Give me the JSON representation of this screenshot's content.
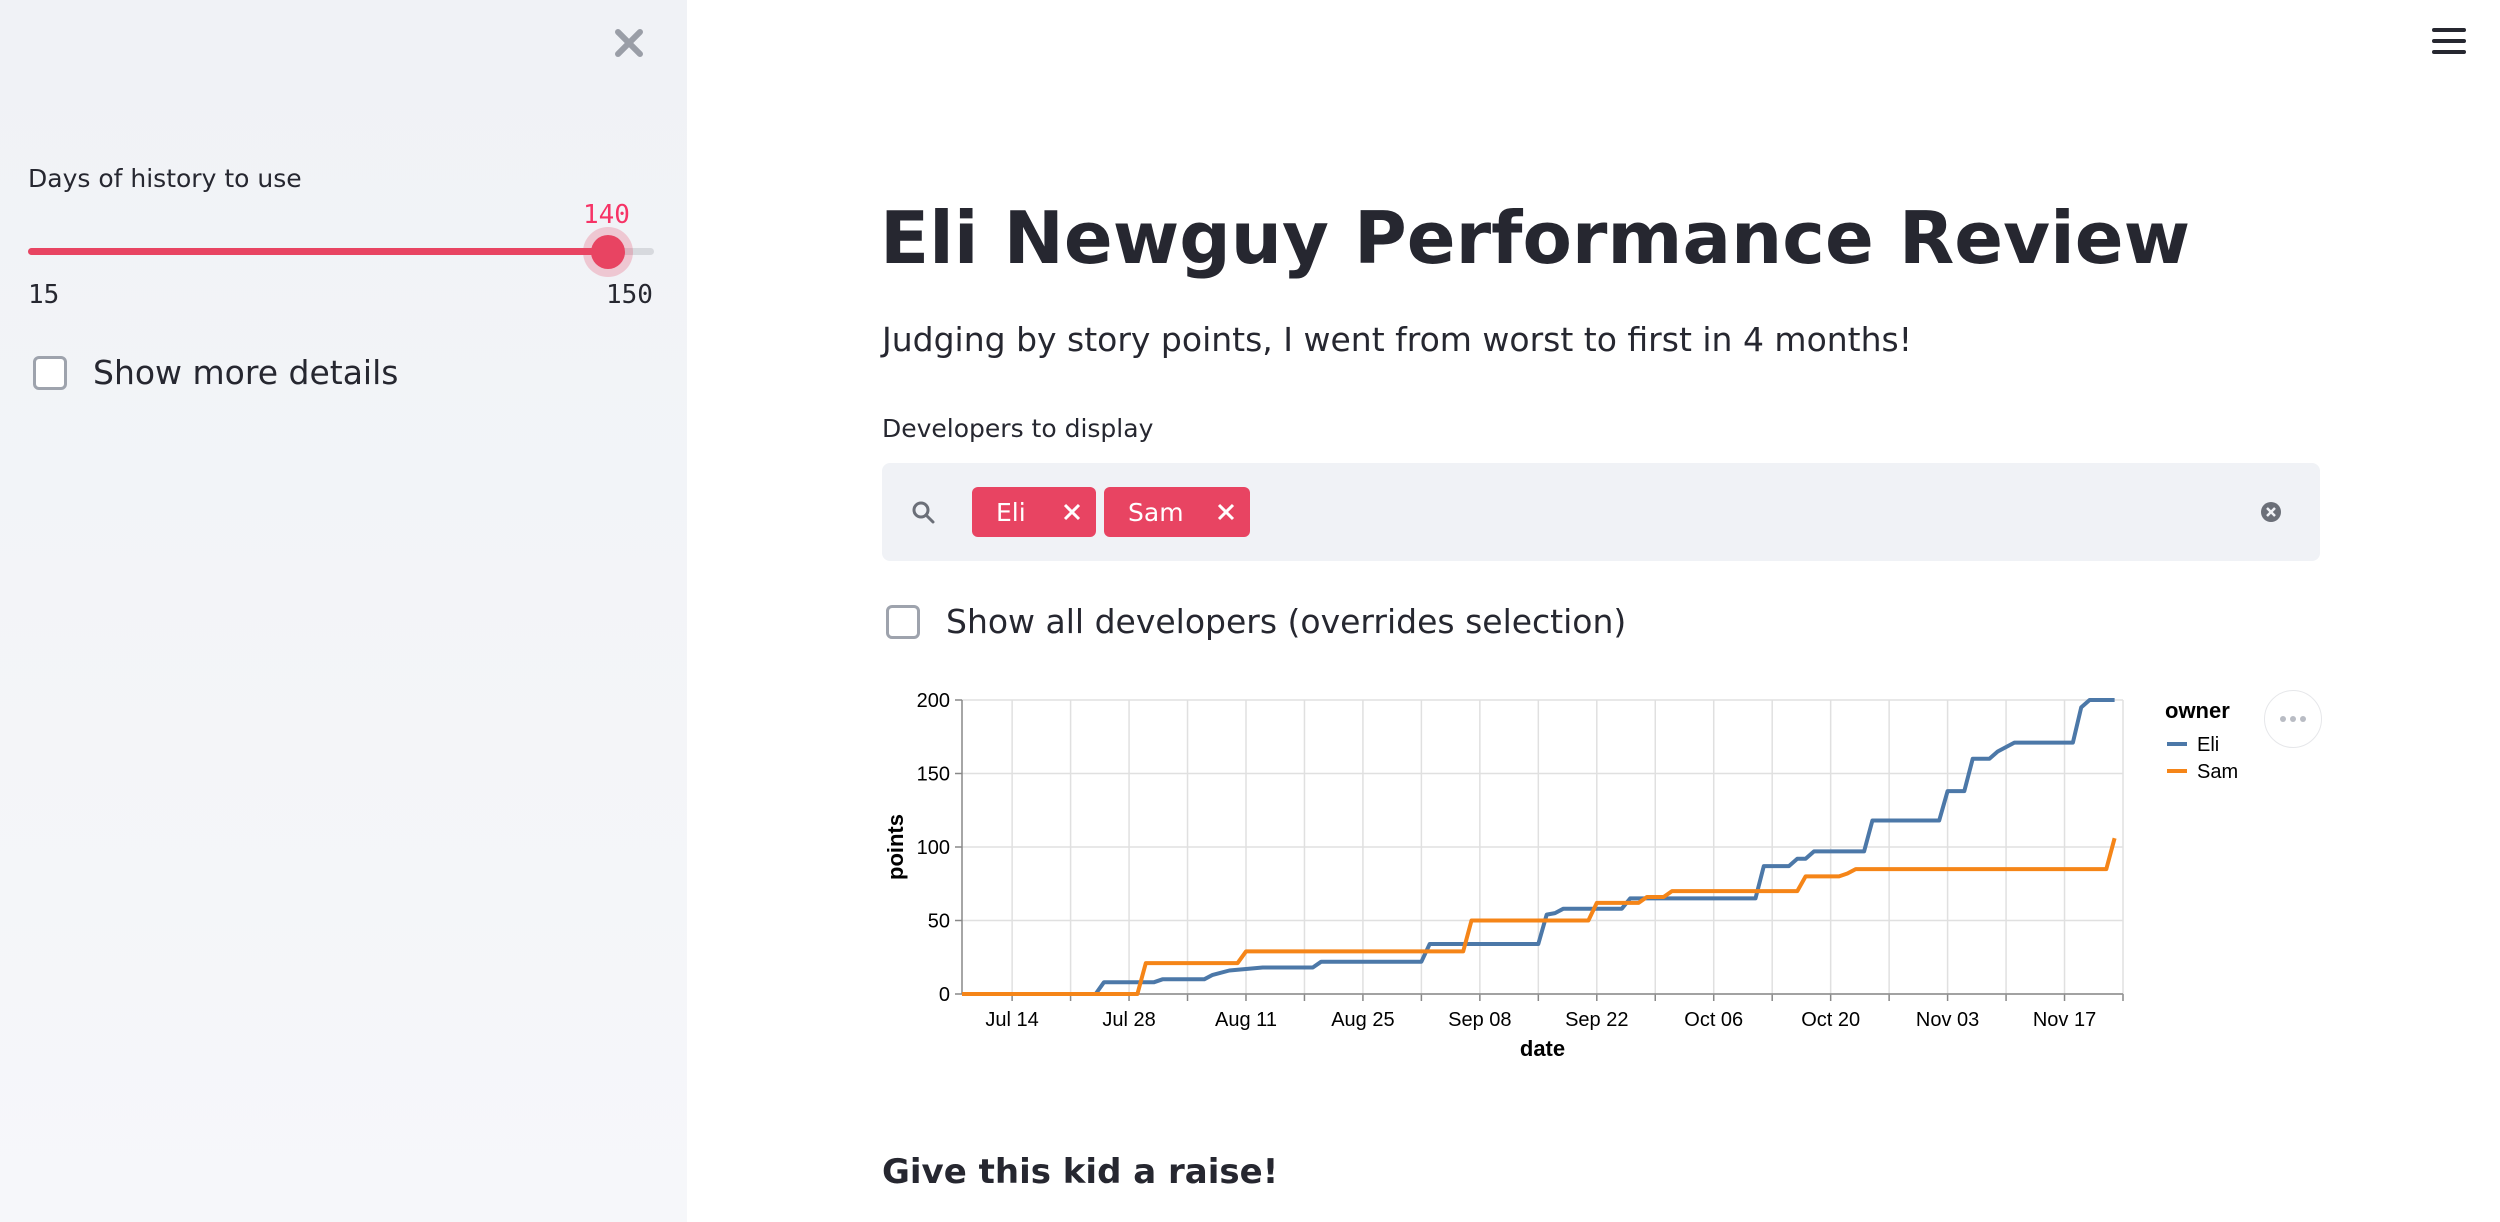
{
  "sidebar": {
    "close_icon": "close-icon",
    "slider": {
      "label": "Days of history to use",
      "value": 140,
      "value_text": "140",
      "min": 15,
      "max": 150,
      "min_text": "15",
      "max_text": "150"
    },
    "details_checkbox": {
      "label": "Show more details",
      "checked": false
    }
  },
  "header": {
    "menu_icon": "hamburger-menu-icon"
  },
  "main": {
    "title": "Eli Newguy Performance Review",
    "subtitle": "Judging by story points, I went from worst to first in 4 months!",
    "developers": {
      "label": "Developers to display",
      "selected": [
        "Eli",
        "Sam"
      ],
      "search_icon": "search-icon",
      "clear_icon": "clear-all-icon"
    },
    "all_devs_checkbox": {
      "label": "Show all developers (overrides selection)",
      "checked": false
    },
    "footer_heading": "Give this kid a raise!"
  },
  "colors": {
    "accent": "#e84462",
    "eli": "#4c78a8",
    "sam": "#f58518"
  },
  "chart_data": {
    "type": "line",
    "xlabel": "date",
    "ylabel": "points",
    "ylim": [
      0,
      200
    ],
    "y_ticks": [
      "0",
      "50",
      "100",
      "150",
      "200"
    ],
    "x_ticks": [
      "Jul 14",
      "Jul 28",
      "Aug 11",
      "Aug 25",
      "Sep 08",
      "Sep 22",
      "Oct 06",
      "Oct 20",
      "Nov 03",
      "Nov 17"
    ],
    "x_range": [
      "2019-07-08",
      "2019-11-24"
    ],
    "grid": true,
    "legend": {
      "title": "owner",
      "position": "top-right"
    },
    "series": [
      {
        "name": "Eli",
        "color": "#4c78a8",
        "points": [
          [
            "2019-07-08",
            0
          ],
          [
            "2019-07-24",
            0
          ],
          [
            "2019-07-25",
            8
          ],
          [
            "2019-07-31",
            8
          ],
          [
            "2019-08-01",
            10
          ],
          [
            "2019-08-06",
            10
          ],
          [
            "2019-08-07",
            13
          ],
          [
            "2019-08-09",
            16
          ],
          [
            "2019-08-13",
            18
          ],
          [
            "2019-08-19",
            18
          ],
          [
            "2019-08-20",
            22
          ],
          [
            "2019-09-01",
            22
          ],
          [
            "2019-09-02",
            34
          ],
          [
            "2019-09-15",
            34
          ],
          [
            "2019-09-16",
            54
          ],
          [
            "2019-09-17",
            55
          ],
          [
            "2019-09-18",
            58
          ],
          [
            "2019-09-25",
            58
          ],
          [
            "2019-09-26",
            65
          ],
          [
            "2019-10-11",
            65
          ],
          [
            "2019-10-12",
            87
          ],
          [
            "2019-10-15",
            87
          ],
          [
            "2019-10-16",
            92
          ],
          [
            "2019-10-17",
            92
          ],
          [
            "2019-10-18",
            97
          ],
          [
            "2019-10-24",
            97
          ],
          [
            "2019-10-25",
            118
          ],
          [
            "2019-11-02",
            118
          ],
          [
            "2019-11-03",
            138
          ],
          [
            "2019-11-05",
            138
          ],
          [
            "2019-11-06",
            160
          ],
          [
            "2019-11-08",
            160
          ],
          [
            "2019-11-09",
            165
          ],
          [
            "2019-11-11",
            171
          ],
          [
            "2019-11-18",
            171
          ],
          [
            "2019-11-19",
            195
          ],
          [
            "2019-11-20",
            200
          ],
          [
            "2019-11-23",
            200
          ]
        ]
      },
      {
        "name": "Sam",
        "color": "#f58518",
        "points": [
          [
            "2019-07-08",
            0
          ],
          [
            "2019-07-29",
            0
          ],
          [
            "2019-07-30",
            21
          ],
          [
            "2019-08-10",
            21
          ],
          [
            "2019-08-11",
            29
          ],
          [
            "2019-09-06",
            29
          ],
          [
            "2019-09-07",
            50
          ],
          [
            "2019-09-21",
            50
          ],
          [
            "2019-09-22",
            62
          ],
          [
            "2019-09-27",
            62
          ],
          [
            "2019-09-28",
            66
          ],
          [
            "2019-09-30",
            66
          ],
          [
            "2019-10-01",
            70
          ],
          [
            "2019-10-16",
            70
          ],
          [
            "2019-10-17",
            80
          ],
          [
            "2019-10-21",
            80
          ],
          [
            "2019-10-22",
            82
          ],
          [
            "2019-10-23",
            85
          ],
          [
            "2019-11-22",
            85
          ],
          [
            "2019-11-23",
            106
          ]
        ]
      }
    ]
  }
}
